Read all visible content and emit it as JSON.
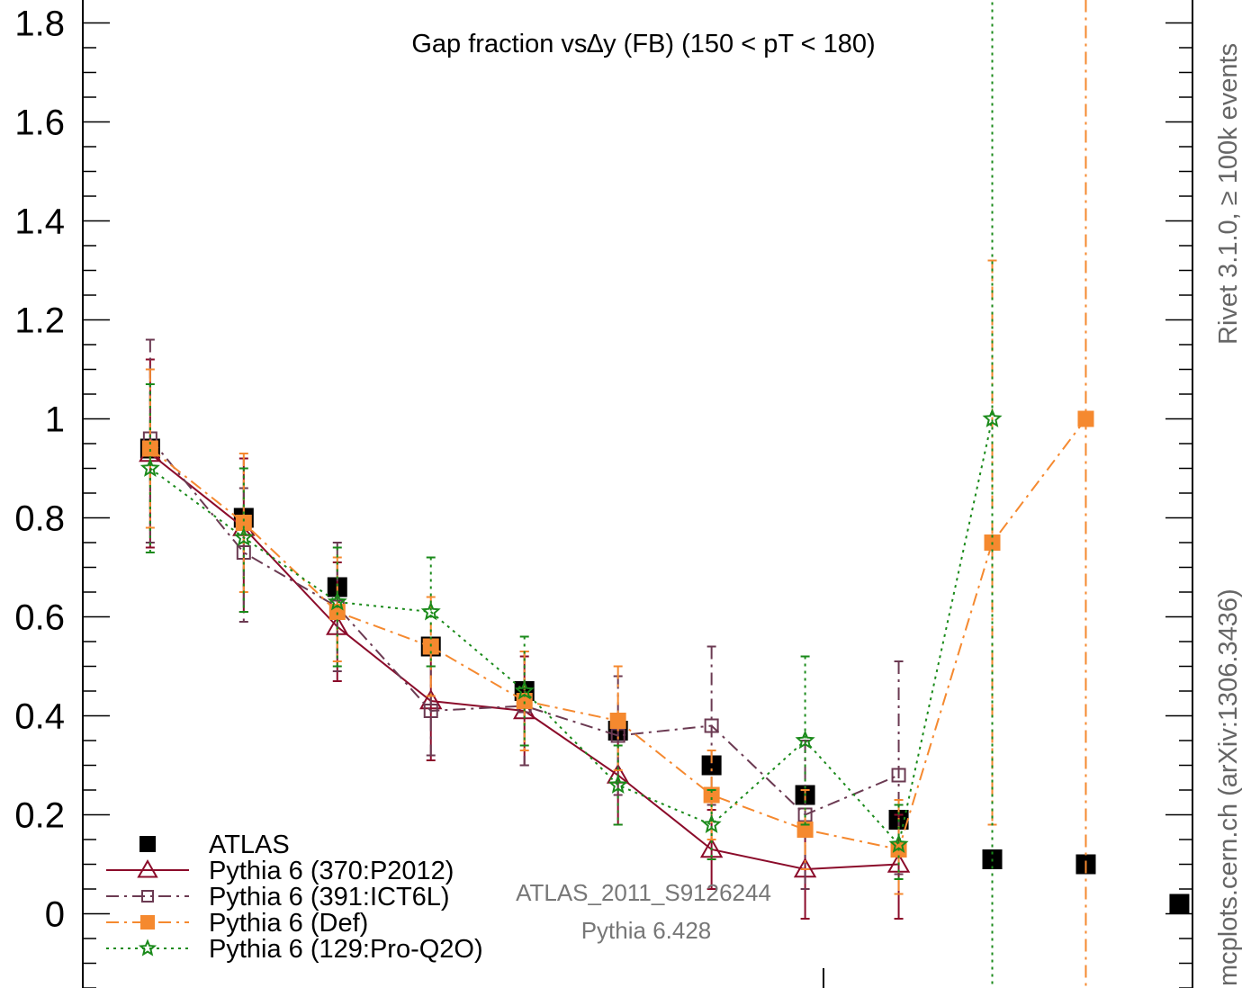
{
  "chart_data": {
    "type": "scatter",
    "title": "Gap fraction vs∆y (FB) (150 < pT < 180)",
    "xlabel": "",
    "ylabel": "",
    "x": [
      0.25,
      0.75,
      1.25,
      1.75,
      2.25,
      2.75,
      3.25,
      3.75,
      4.25,
      4.75,
      5.25,
      5.75
    ],
    "xlim": [
      -0.11,
      5.82
    ],
    "ylim": [
      -0.15,
      1.85
    ],
    "yticks": [
      0,
      0.2,
      0.4,
      0.6,
      0.8,
      1,
      1.2,
      1.4,
      1.6,
      1.8
    ],
    "ytick_labels": [
      "0",
      "0.2",
      "0.4",
      "0.6",
      "0.8",
      "1",
      "1.2",
      "1.4",
      "1.6",
      "1.8"
    ],
    "grid": false,
    "legend_position": "bottom-left",
    "series": [
      {
        "name": "ATLAS",
        "marker": "filled-square",
        "line": "none",
        "color": "#000000",
        "values": [
          0.94,
          0.8,
          0.66,
          0.54,
          0.45,
          0.37,
          0.3,
          0.24,
          0.19,
          0.11,
          0.1,
          0.02
        ],
        "err_lo": [
          0.01,
          0.01,
          0.01,
          0.01,
          0.01,
          0.01,
          0.01,
          0.01,
          0.01,
          0.01,
          0.01,
          0.01
        ],
        "err_hi": [
          0.01,
          0.01,
          0.01,
          0.01,
          0.01,
          0.01,
          0.01,
          0.01,
          0.01,
          0.01,
          0.01,
          0.01
        ]
      },
      {
        "name": "Pythia 6 (370:P2012)",
        "marker": "open-triangle",
        "line": "solid",
        "color": "#8b0b2a",
        "values": [
          0.93,
          0.78,
          0.58,
          0.43,
          0.41,
          0.28,
          0.13,
          0.09,
          0.1
        ],
        "err_lo": [
          0.19,
          0.17,
          0.11,
          0.12,
          0.11,
          0.1,
          0.08,
          0.1,
          0.11
        ],
        "err_hi": [
          0.19,
          0.14,
          0.13,
          0.11,
          0.11,
          0.1,
          0.08,
          0.09,
          0.1
        ]
      },
      {
        "name": "Pythia 6 (391:ICT6L)",
        "marker": "open-square",
        "line": "dashdot",
        "color": "#6b3a52",
        "values": [
          0.96,
          0.73,
          0.62,
          0.41,
          0.42,
          0.36,
          0.38,
          0.2,
          0.28
        ],
        "err_lo": [
          0.21,
          0.14,
          0.13,
          0.09,
          0.12,
          0.12,
          0.16,
          0.15,
          0.2
        ],
        "err_hi": [
          0.2,
          0.13,
          0.13,
          0.09,
          0.11,
          0.12,
          0.16,
          0.15,
          0.23
        ]
      },
      {
        "name": "Pythia 6 (Def)",
        "marker": "filled-square",
        "line": "dashdot",
        "color": "#f5892f",
        "values": [
          0.94,
          0.79,
          0.61,
          0.54,
          0.43,
          0.39,
          0.24,
          0.17,
          0.13,
          0.75,
          1.0,
          null
        ],
        "err_lo": [
          0.16,
          0.14,
          0.1,
          0.1,
          0.1,
          0.1,
          0.09,
          0.08,
          0.09,
          0.57,
          1.2,
          null
        ],
        "err_hi": [
          0.16,
          0.14,
          0.11,
          0.1,
          0.1,
          0.11,
          0.09,
          0.08,
          0.1,
          0.57,
          0.9,
          null
        ]
      },
      {
        "name": "Pythia 6 (129:Pro-Q2O)",
        "marker": "open-star",
        "line": "dotted",
        "color": "#1a8a1a",
        "values": [
          0.9,
          0.76,
          0.63,
          0.61,
          0.45,
          0.26,
          0.18,
          0.35,
          0.14,
          1.0
        ],
        "err_lo": [
          0.17,
          0.15,
          0.13,
          0.11,
          0.11,
          0.08,
          0.07,
          0.17,
          0.07,
          1.2
        ],
        "err_hi": [
          0.17,
          0.14,
          0.11,
          0.11,
          0.11,
          0.08,
          0.07,
          0.17,
          0.08,
          0.9
        ]
      }
    ]
  },
  "annotations": {
    "analysis_id": "ATLAS_2011_S9126244",
    "generator": "Pythia 6.428",
    "side_top": "Rivet 3.1.0, ≥ 100k events",
    "side_bottom": "mcplots.cern.ch (arXiv:1306.3436)"
  }
}
